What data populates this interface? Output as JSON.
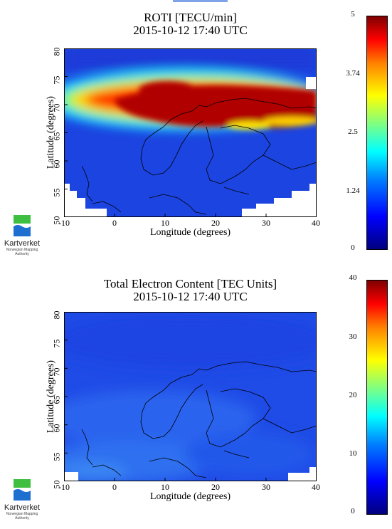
{
  "maps": [
    {
      "title": "ROTI [TECU/min]",
      "datetime": "2015-10-12 17:40 UTC",
      "xlabel": "Longitude (degrees)",
      "ylabel": "Latitude (degrees)",
      "xticks": [
        "-10",
        "0",
        "10",
        "20",
        "30",
        "40"
      ],
      "yticks": [
        "50",
        "55",
        "60",
        "65",
        "70",
        "75",
        "80"
      ],
      "colorbar": {
        "min": 0,
        "max": 5,
        "ticks": [
          "5",
          "3.74",
          "2.5",
          "1.24",
          "0"
        ]
      }
    },
    {
      "title": "Total Electron Content [TEC Units]",
      "datetime": "2015-10-12 17:40 UTC",
      "xlabel": "Longitude (degrees)",
      "ylabel": "Latitude (degrees)",
      "xticks": [
        "-10",
        "0",
        "10",
        "20",
        "30",
        "40"
      ],
      "yticks": [
        "50",
        "55",
        "60",
        "65",
        "70",
        "75",
        "80"
      ],
      "colorbar": {
        "min": 0,
        "max": 40,
        "ticks": [
          "40",
          "30",
          "20",
          "10",
          "0"
        ]
      }
    }
  ],
  "logo": {
    "name": "Kartverket",
    "subtitle": "Norwegian Mapping Authority",
    "colors": [
      "#3fbf3f",
      "#1f6fd1"
    ]
  },
  "accent": "#7ea3e6"
}
